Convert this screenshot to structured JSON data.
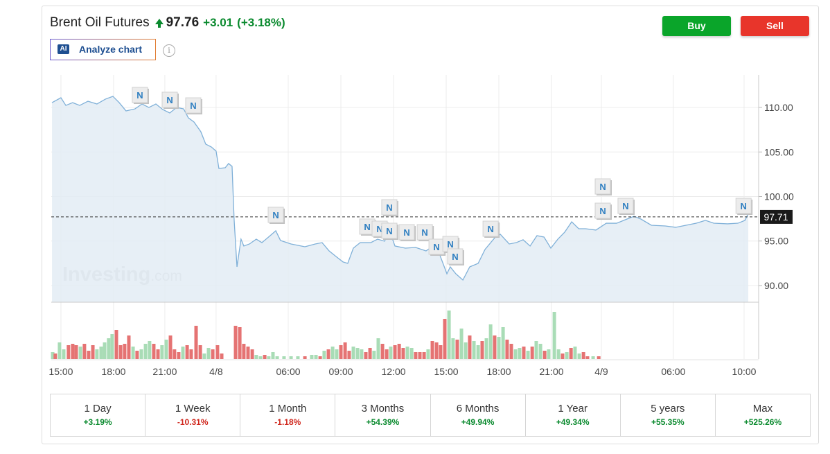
{
  "header": {
    "title": "Brent Oil Futures",
    "price": "97.76",
    "change": "+3.01",
    "change_pct": "(+3.18%)",
    "ai_badge": "AI",
    "analyze": "Analyze chart",
    "info": "i"
  },
  "buttons": {
    "buy": "Buy",
    "sell": "Sell"
  },
  "chart_data": {
    "type": "line",
    "line_color": "#7fb0d8",
    "fill_color": "#e3ecf5",
    "xlim": [
      -0.55,
      39.75
    ],
    "ylim": [
      88.13,
      113.66
    ],
    "yticks": [
      {
        "value": 90,
        "label": "90.00"
      },
      {
        "value": 95,
        "label": "95.00"
      },
      {
        "value": 100,
        "label": "100.00"
      },
      {
        "value": 105,
        "label": "105.00"
      },
      {
        "value": 110,
        "label": "110.00"
      }
    ],
    "xticks": [
      {
        "value": 0,
        "label": "15:00"
      },
      {
        "value": 3,
        "label": "18:00"
      },
      {
        "value": 5.92,
        "label": "21:00"
      },
      {
        "value": 8.84,
        "label": "4/8"
      },
      {
        "value": 12.95,
        "label": "06:00"
      },
      {
        "value": 15.95,
        "label": "09:00"
      },
      {
        "value": 18.95,
        "label": "12:00"
      },
      {
        "value": 21.95,
        "label": "15:00"
      },
      {
        "value": 24.95,
        "label": "18:00"
      },
      {
        "value": 27.95,
        "label": "21:00"
      },
      {
        "value": 30.79,
        "label": "4/9"
      },
      {
        "value": 34.89,
        "label": "06:00"
      },
      {
        "value": 38.92,
        "label": "10:00"
      }
    ],
    "grid": true,
    "last_price": 97.71,
    "watermark": {
      "brand": "Investing",
      "suffix": ".com"
    },
    "x": [
      -0.51,
      0,
      0.28,
      0.67,
      1.07,
      1.54,
      2.05,
      2.53,
      2.96,
      3.32,
      3.71,
      4.22,
      4.62,
      5.01,
      5.41,
      5.8,
      6.2,
      6.59,
      6.99,
      7.26,
      7.58,
      7.97,
      8.25,
      8.57,
      8.84,
      9.0,
      9.36,
      9.55,
      9.75,
      9.87,
      10.03,
      10.26,
      10.42,
      10.74,
      11.13,
      11.45,
      11.92,
      12.24,
      12.51,
      13.11,
      13.9,
      14.49,
      14.88,
      15.28,
      15.67,
      16.07,
      16.34,
      16.66,
      17.05,
      17.65,
      18.04,
      18.44,
      18.71,
      19.03,
      19.62,
      20.21,
      20.8,
      21.2,
      21.59,
      21.99,
      22.18,
      22.5,
      22.9,
      23.29,
      23.77,
      24.16,
      24.75,
      25.03,
      25.54,
      25.94,
      26.33,
      26.73,
      27.12,
      27.52,
      27.91,
      28.31,
      28.7,
      29.1,
      29.5,
      29.89,
      30.48,
      31.07,
      31.66,
      32.25,
      32.65,
      33.04,
      33.64,
      34.43,
      35.02,
      35.61,
      36.2,
      36.72,
      37.19,
      37.98,
      38.57,
      38.97,
      39.16
    ],
    "values": [
      110.54,
      111.09,
      110.23,
      110.54,
      110.23,
      110.7,
      110.39,
      110.93,
      111.25,
      110.54,
      109.61,
      109.84,
      110.39,
      110,
      110.39,
      109.77,
      109.38,
      110,
      109.84,
      108.83,
      108.37,
      107.28,
      105.88,
      105.56,
      105.1,
      103.15,
      103.23,
      103.7,
      103.39,
      97.32,
      92.1,
      95.21,
      94.44,
      94.67,
      95.21,
      94.82,
      95.6,
      96.15,
      95.06,
      94.67,
      94.36,
      94.67,
      94.82,
      93.89,
      93.27,
      92.65,
      92.49,
      94.2,
      94.82,
      94.82,
      95.21,
      94.98,
      96.23,
      94.44,
      94.2,
      94.28,
      93.89,
      94.44,
      93.42,
      91.32,
      92.1,
      91.32,
      90.62,
      92.1,
      92.49,
      94.05,
      95.45,
      95.76,
      94.67,
      94.82,
      95.14,
      94.44,
      95.6,
      95.45,
      94.2,
      95.21,
      95.99,
      97.16,
      96.38,
      96.38,
      96.23,
      97.0,
      97.0,
      97.47,
      97.78,
      97.47,
      96.77,
      96.69,
      96.54,
      96.77,
      97.0,
      97.32,
      97.0,
      96.93,
      97.0,
      97.32,
      98.09
    ],
    "news": [
      {
        "x": 4.5,
        "y": 111.4,
        "label": "N"
      },
      {
        "x": 6.2,
        "y": 110.86,
        "label": "N"
      },
      {
        "x": 7.54,
        "y": 110.23,
        "label": "N"
      },
      {
        "x": 12.24,
        "y": 97.94,
        "label": "N"
      },
      {
        "x": 17.45,
        "y": 96.62,
        "label": "N"
      },
      {
        "x": 18.16,
        "y": 96.38,
        "label": "N"
      },
      {
        "x": 18.71,
        "y": 98.79,
        "label": "N"
      },
      {
        "x": 18.71,
        "y": 96.15,
        "label": "N"
      },
      {
        "x": 19.7,
        "y": 95.99,
        "label": "N"
      },
      {
        "x": 20.73,
        "y": 95.99,
        "label": "N"
      },
      {
        "x": 21.4,
        "y": 94.36,
        "label": "N"
      },
      {
        "x": 22.19,
        "y": 94.67,
        "label": "N"
      },
      {
        "x": 22.46,
        "y": 93.27,
        "label": "N"
      },
      {
        "x": 24.48,
        "y": 96.38,
        "label": "N"
      },
      {
        "x": 30.87,
        "y": 101.13,
        "label": "N"
      },
      {
        "x": 30.87,
        "y": 98.4,
        "label": "N"
      },
      {
        "x": 32.17,
        "y": 98.95,
        "label": "N"
      },
      {
        "x": 38.89,
        "y": 98.95,
        "label": "N"
      }
    ],
    "volume": {
      "vlim": [
        0,
        70
      ],
      "x": [
        -0.47,
        -0.32,
        -0.08,
        0.16,
        0.43,
        0.67,
        0.87,
        1.11,
        1.34,
        1.58,
        1.82,
        2.05,
        2.29,
        2.49,
        2.72,
        2.92,
        3.16,
        3.4,
        3.63,
        3.87,
        4.11,
        4.34,
        4.58,
        4.82,
        5.05,
        5.29,
        5.53,
        5.76,
        6.0,
        6.24,
        6.47,
        6.71,
        6.95,
        7.19,
        7.42,
        7.7,
        7.94,
        8.17,
        8.41,
        8.65,
        8.92,
        9.16,
        9.95,
        10.19,
        10.42,
        10.66,
        10.9,
        11.13,
        11.37,
        11.61,
        11.84,
        12.08,
        12.32,
        12.71,
        13.11,
        13.5,
        13.9,
        14.29,
        14.53,
        14.77,
        15.0,
        15.24,
        15.48,
        15.71,
        15.95,
        16.19,
        16.42,
        16.66,
        16.9,
        17.13,
        17.37,
        17.61,
        17.84,
        18.08,
        18.32,
        18.56,
        18.79,
        19.03,
        19.27,
        19.5,
        19.74,
        19.98,
        20.21,
        20.45,
        20.69,
        20.92,
        21.16,
        21.4,
        21.63,
        21.87,
        22.11,
        22.34,
        22.58,
        22.82,
        23.06,
        23.29,
        23.53,
        23.77,
        24.0,
        24.24,
        24.48,
        24.71,
        24.95,
        25.19,
        25.42,
        25.66,
        25.9,
        26.13,
        26.37,
        26.61,
        26.85,
        27.08,
        27.32,
        27.56,
        27.79,
        28.11,
        28.35,
        28.58,
        28.82,
        29.06,
        29.29,
        29.53,
        29.77,
        30.0,
        30.32,
        30.64
      ],
      "values": [
        10,
        8,
        24,
        14,
        20,
        22,
        20,
        18,
        22,
        12,
        20,
        14,
        18,
        24,
        30,
        36,
        42,
        20,
        22,
        34,
        18,
        12,
        14,
        22,
        26,
        22,
        14,
        20,
        28,
        34,
        14,
        10,
        18,
        20,
        14,
        48,
        20,
        8,
        16,
        14,
        20,
        8,
        48,
        46,
        22,
        18,
        14,
        6,
        4,
        6,
        4,
        10,
        4,
        4,
        4,
        4,
        4,
        6,
        6,
        4,
        12,
        14,
        18,
        14,
        20,
        24,
        12,
        18,
        16,
        14,
        10,
        16,
        12,
        30,
        22,
        14,
        18,
        20,
        22,
        16,
        18,
        16,
        10,
        10,
        10,
        14,
        26,
        24,
        20,
        58,
        70,
        30,
        28,
        44,
        24,
        34,
        26,
        20,
        26,
        30,
        50,
        34,
        32,
        46,
        28,
        22,
        14,
        16,
        18,
        12,
        18,
        26,
        22,
        12,
        14,
        68,
        14,
        8,
        10,
        16,
        18,
        8,
        10,
        4,
        4,
        4
      ],
      "up_color": "#a9dcb6",
      "down_color": "#e57373",
      "up": [
        1,
        0,
        1,
        1,
        0,
        0,
        0,
        1,
        0,
        0,
        0,
        1,
        1,
        1,
        1,
        1,
        0,
        0,
        0,
        0,
        1,
        0,
        1,
        1,
        1,
        0,
        0,
        1,
        1,
        0,
        0,
        0,
        1,
        0,
        0,
        0,
        0,
        1,
        1,
        0,
        0,
        0,
        0,
        0,
        0,
        0,
        0,
        1,
        1,
        0,
        1,
        1,
        1,
        1,
        1,
        1,
        0,
        1,
        1,
        0,
        1,
        0,
        1,
        1,
        0,
        0,
        0,
        1,
        1,
        1,
        0,
        0,
        1,
        1,
        0,
        0,
        1,
        0,
        0,
        0,
        1,
        1,
        0,
        0,
        0,
        1,
        0,
        0,
        0,
        0,
        1,
        1,
        0,
        1,
        1,
        0,
        1,
        1,
        0,
        1,
        1,
        0,
        1,
        1,
        0,
        0,
        1,
        1,
        0,
        1,
        0,
        1,
        1,
        0,
        1,
        1,
        1,
        0,
        1,
        0,
        1,
        1,
        0,
        0,
        1,
        0
      ]
    }
  },
  "periods": [
    {
      "label": "1 Day",
      "change": "+3.19%"
    },
    {
      "label": "1 Week",
      "change": "-10.31%"
    },
    {
      "label": "1 Month",
      "change": "-1.18%"
    },
    {
      "label": "3 Months",
      "change": "+54.39%"
    },
    {
      "label": "6 Months",
      "change": "+49.94%"
    },
    {
      "label": "1 Year",
      "change": "+49.34%"
    },
    {
      "label": "5 years",
      "change": "+55.35%"
    },
    {
      "label": "Max",
      "change": "+525.26%"
    }
  ]
}
